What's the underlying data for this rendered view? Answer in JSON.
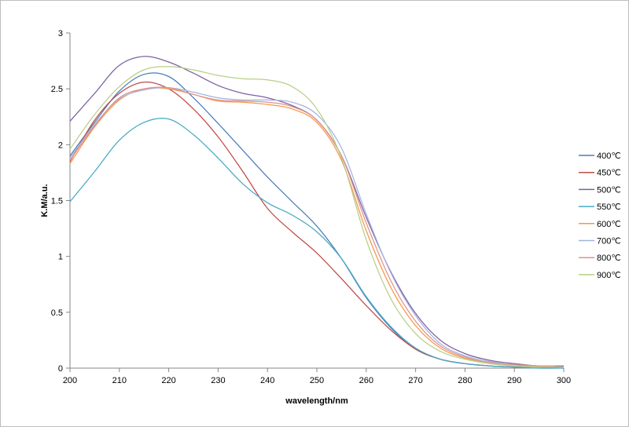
{
  "chart_data": {
    "type": "line",
    "title": "",
    "xlabel": "wavelength/nm",
    "ylabel": "K.M/a.u.",
    "xlim": [
      200,
      300
    ],
    "ylim": [
      0,
      3
    ],
    "x_ticks": [
      200,
      210,
      220,
      230,
      240,
      250,
      260,
      270,
      280,
      290,
      300
    ],
    "y_ticks": [
      0,
      0.5,
      1,
      1.5,
      2,
      2.5,
      3
    ],
    "y_tick_labels": [
      "0",
      "0.5",
      "1",
      "1.5",
      "2",
      "2.5",
      "3"
    ],
    "grid": false,
    "legend_position": "right",
    "x": [
      200,
      205,
      210,
      215,
      220,
      225,
      230,
      235,
      240,
      245,
      250,
      255,
      260,
      265,
      270,
      275,
      280,
      285,
      290,
      295,
      300
    ],
    "series": [
      {
        "name": "400℃",
        "color": "#4a7ebb",
        "values": [
          1.9,
          2.2,
          2.48,
          2.63,
          2.61,
          2.42,
          2.19,
          1.95,
          1.71,
          1.49,
          1.27,
          0.98,
          0.63,
          0.36,
          0.17,
          0.08,
          0.04,
          0.02,
          0.01,
          0.01,
          0.0
        ]
      },
      {
        "name": "450℃",
        "color": "#be4b48",
        "values": [
          1.85,
          2.22,
          2.46,
          2.56,
          2.5,
          2.32,
          2.07,
          1.76,
          1.43,
          1.22,
          1.03,
          0.8,
          0.56,
          0.34,
          0.17,
          0.08,
          0.04,
          0.02,
          0.01,
          0.01,
          0.0
        ]
      },
      {
        "name": "500℃",
        "color": "#7d60a0",
        "values": [
          2.21,
          2.46,
          2.71,
          2.79,
          2.74,
          2.64,
          2.53,
          2.46,
          2.42,
          2.35,
          2.22,
          1.9,
          1.35,
          0.86,
          0.49,
          0.25,
          0.13,
          0.07,
          0.04,
          0.02,
          0.02
        ]
      },
      {
        "name": "550℃",
        "color": "#46aac5",
        "values": [
          1.49,
          1.76,
          2.04,
          2.2,
          2.23,
          2.09,
          1.88,
          1.65,
          1.48,
          1.37,
          1.22,
          0.98,
          0.64,
          0.37,
          0.18,
          0.08,
          0.04,
          0.02,
          0.01,
          0.0,
          0.0
        ]
      },
      {
        "name": "600℃",
        "color": "#f79646",
        "values": [
          1.83,
          2.16,
          2.4,
          2.5,
          2.5,
          2.45,
          2.39,
          2.38,
          2.36,
          2.32,
          2.2,
          1.86,
          1.23,
          0.72,
          0.38,
          0.18,
          0.09,
          0.05,
          0.03,
          0.02,
          0.01
        ]
      },
      {
        "name": "700℃",
        "color": "#a0b4e0",
        "values": [
          1.88,
          2.18,
          2.41,
          2.49,
          2.51,
          2.47,
          2.42,
          2.4,
          2.4,
          2.38,
          2.27,
          1.97,
          1.38,
          0.85,
          0.47,
          0.22,
          0.11,
          0.06,
          0.03,
          0.02,
          0.01
        ]
      },
      {
        "name": "800℃",
        "color": "#e0908c",
        "values": [
          1.86,
          2.17,
          2.42,
          2.5,
          2.51,
          2.45,
          2.4,
          2.39,
          2.38,
          2.34,
          2.22,
          1.9,
          1.3,
          0.78,
          0.42,
          0.2,
          0.1,
          0.05,
          0.03,
          0.02,
          0.01
        ]
      },
      {
        "name": "900℃",
        "color": "#b8cf86",
        "values": [
          1.96,
          2.27,
          2.52,
          2.67,
          2.7,
          2.67,
          2.62,
          2.59,
          2.58,
          2.52,
          2.32,
          1.88,
          1.15,
          0.62,
          0.31,
          0.15,
          0.08,
          0.04,
          0.02,
          0.01,
          0.01
        ]
      }
    ]
  }
}
